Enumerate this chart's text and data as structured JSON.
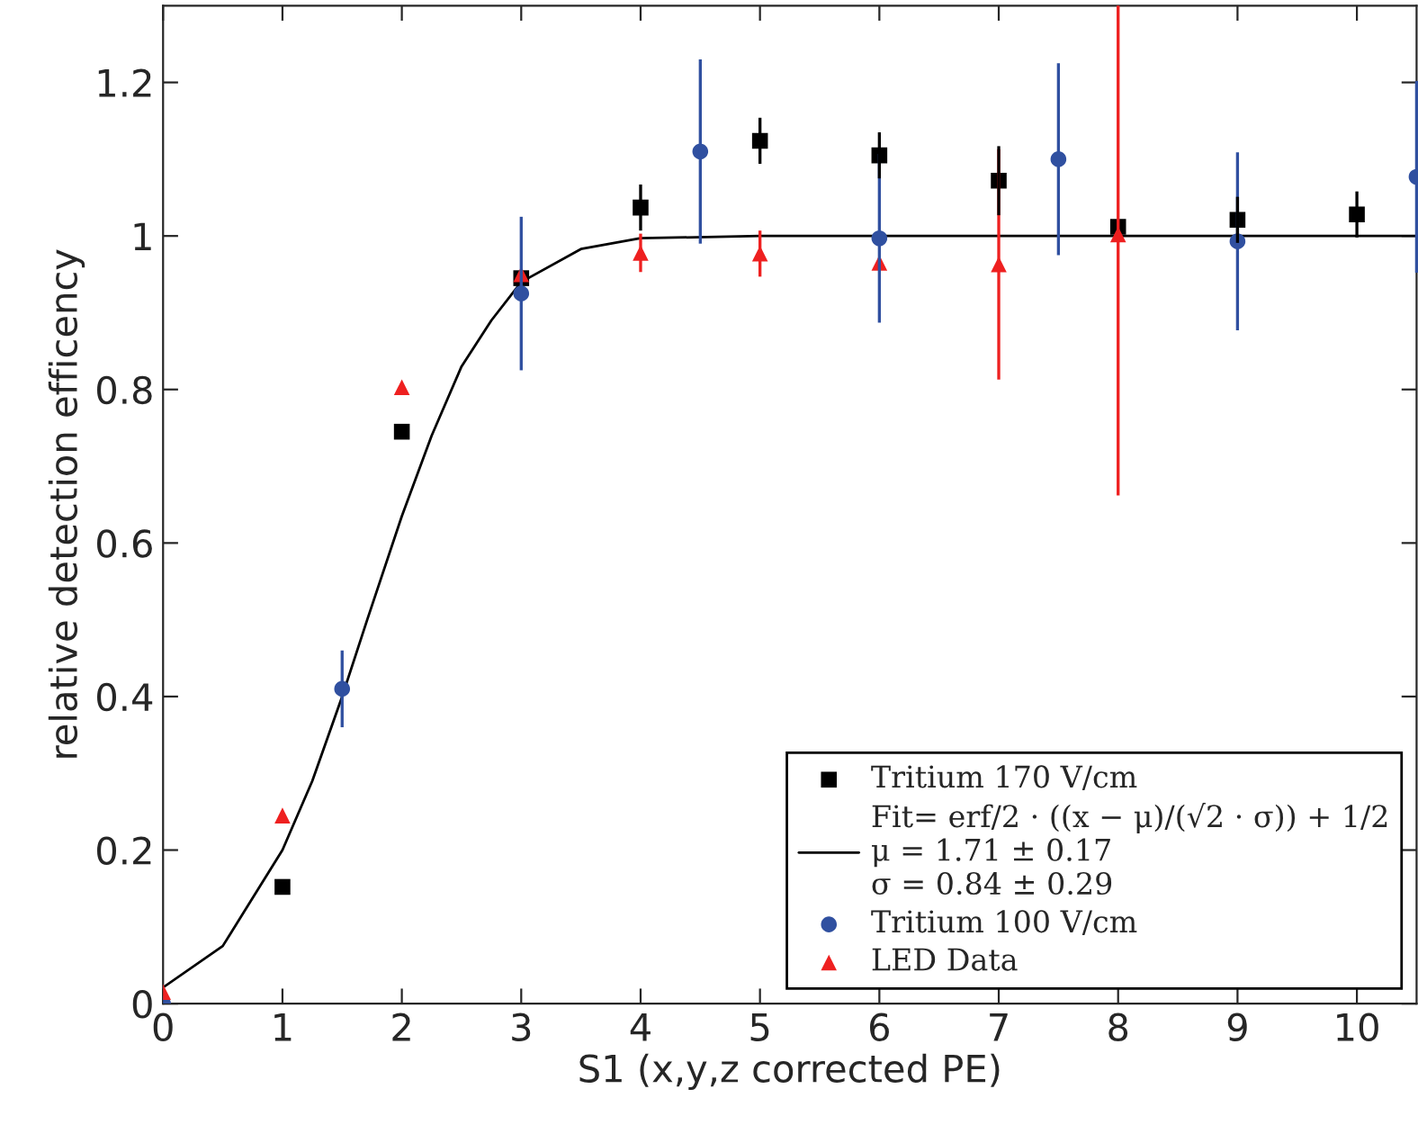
{
  "chart_data": {
    "type": "scatter",
    "xlabel": "S1 (x,y,z corrected PE)",
    "ylabel": "relative detection efficency",
    "xlim": [
      0,
      10.5
    ],
    "xticks": [
      0,
      1,
      2,
      3,
      4,
      5,
      6,
      7,
      8,
      9,
      10
    ],
    "ylim": [
      0,
      1.3
    ],
    "yticks": [
      0,
      0.2,
      0.4,
      0.6,
      0.8,
      1,
      1.2
    ],
    "grid": false,
    "legend": "bottom right",
    "series": [
      {
        "name": "Tritium 170 V/cm",
        "marker": "square",
        "color": "#000000",
        "x": [
          1,
          2,
          3,
          4,
          5,
          6,
          7,
          8,
          9,
          10
        ],
        "values": [
          0.152,
          0.745,
          0.945,
          1.037,
          1.124,
          1.105,
          1.072,
          1.012,
          1.021,
          1.028
        ],
        "errors": [
          null,
          null,
          null,
          0.03,
          0.03,
          0.03,
          0.045,
          null,
          0.03,
          0.03
        ]
      },
      {
        "name": "Fit= erf/2 · ((x − μ)/(√2 · σ)) + 1/2\nμ = 1.71 ± 0.17\nσ = 0.84 ± 0.29",
        "type": "line",
        "marker": "none",
        "line_style": "solid",
        "color": "#000000",
        "x": [
          0,
          0.5,
          1,
          1.25,
          1.5,
          1.71,
          2,
          2.25,
          2.5,
          2.75,
          3,
          3.5,
          4,
          5,
          10.5
        ],
        "values": [
          0.021,
          0.075,
          0.2,
          0.29,
          0.4,
          0.5,
          0.635,
          0.74,
          0.83,
          0.89,
          0.94,
          0.983,
          0.997,
          1,
          1
        ]
      },
      {
        "name": "Tritium 100 V/cm",
        "marker": "circle",
        "color": "#3050a0",
        "x": [
          0,
          1.5,
          3,
          4.5,
          6,
          7.5,
          9,
          10.5
        ],
        "values": [
          0,
          0.41,
          0.925,
          1.11,
          0.997,
          1.1,
          0.993,
          1.077
        ],
        "errors": [
          null,
          0.05,
          0.1,
          0.12,
          0.11,
          0.125,
          0.116,
          0.125
        ]
      },
      {
        "name": "LED Data",
        "marker": "triangle",
        "color": "#ee2020",
        "x": [
          0,
          1,
          2,
          3,
          4,
          5,
          6,
          7,
          8
        ],
        "values": [
          0.015,
          0.245,
          0.803,
          0.95,
          0.978,
          0.977,
          0.965,
          0.963,
          1.002
        ],
        "errors": [
          null,
          null,
          null,
          null,
          0.025,
          0.03,
          null,
          0.15,
          [
            0.662,
            1.3
          ]
        ]
      }
    ]
  }
}
